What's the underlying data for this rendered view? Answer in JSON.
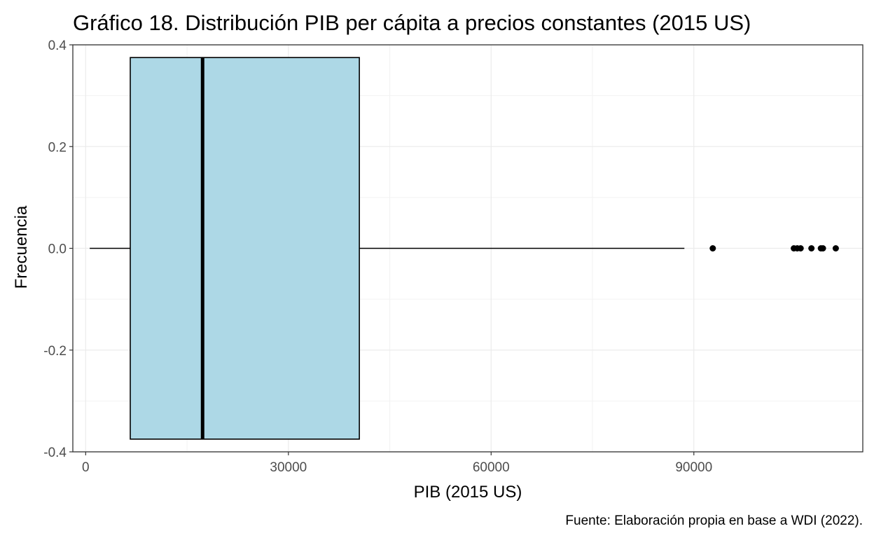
{
  "chart_data": {
    "type": "boxplot",
    "title": "Gráfico 18. Distribución PIB per cápita a precios constantes (2015 US)",
    "xlabel": "PIB (2015 US)",
    "ylabel": "Frecuencia",
    "caption": "Fuente: Elaboración propia en base a WDI (2022).",
    "xlim": [
      -1900,
      115000
    ],
    "ylim": [
      -0.4,
      0.4
    ],
    "x_ticks": [
      0,
      30000,
      60000,
      90000
    ],
    "x_tick_labels": [
      "0",
      "30000",
      "60000",
      "90000"
    ],
    "y_ticks": [
      0.4,
      0.2,
      0.0,
      -0.2,
      -0.4
    ],
    "y_tick_labels": [
      "0.4",
      "0.2",
      "0.0",
      "-0.2",
      "-0.4"
    ],
    "grid": true,
    "box": {
      "whisker_low": 600,
      "q1": 6600,
      "median": 17300,
      "q3": 40500,
      "whisker_high": 88600,
      "y_bottom": -0.375,
      "y_top": 0.375,
      "fill": "#add8e6",
      "stroke": "#000000"
    },
    "outliers": [
      92800,
      104800,
      105300,
      105800,
      107400,
      108800,
      109100,
      111000
    ]
  }
}
